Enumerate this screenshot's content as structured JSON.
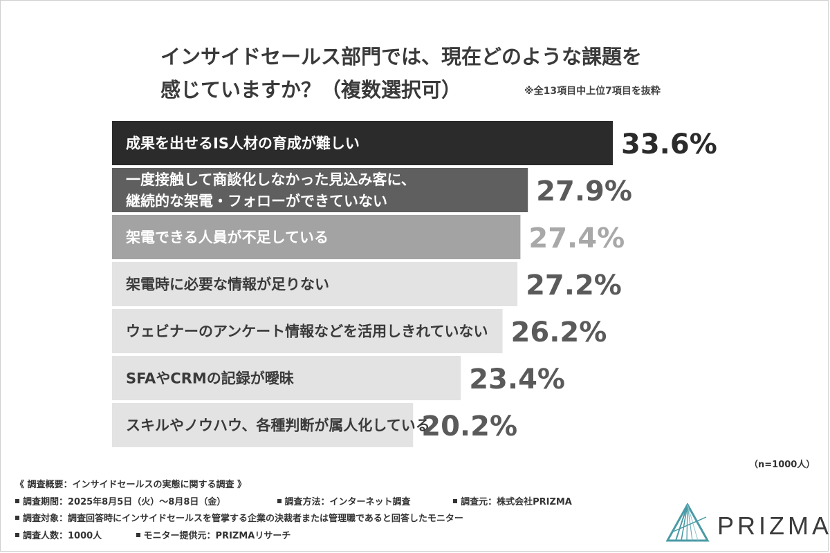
{
  "title_line1": "インサイドセールス部門では、現在どのような課題を",
  "title_line2": "感じていますか？（複数選択可）",
  "note": "※全13項目中上位7項目を抜粋",
  "chart_data": {
    "type": "bar",
    "orientation": "horizontal",
    "categories": [
      [
        "成果を出せるIS人材の育成が難しい"
      ],
      [
        "一度接触して商談化しなかった見込み客に、",
        "継続的な架電・フォローができていない"
      ],
      [
        "架電できる人員が不足している"
      ],
      [
        "架電時に必要な情報が足りない"
      ],
      [
        "ウェビナーのアンケート情報などを活用しきれていない"
      ],
      [
        "SFAやCRMの記録が曖昧"
      ],
      [
        "スキルやノウハウ、各種判断が属人化している"
      ]
    ],
    "values": [
      33.6,
      27.9,
      27.4,
      27.2,
      26.2,
      23.4,
      20.2
    ],
    "value_labels": [
      "33.6%",
      "27.9%",
      "27.4%",
      "27.2%",
      "26.2%",
      "23.4%",
      "20.2%"
    ],
    "bar_colors": [
      "#2b2b2b",
      "#5f5f5f",
      "#a3a3a3",
      "#e3e3e3",
      "#e3e3e3",
      "#e3e3e3",
      "#e3e3e3"
    ],
    "label_colors": [
      "#ffffff",
      "#ffffff",
      "#ffffff",
      "#3a3a3a",
      "#3a3a3a",
      "#3a3a3a",
      "#3a3a3a"
    ],
    "value_colors": [
      "#2b2b2b",
      "#5a5a5a",
      "#a8a8a8",
      "#5a5a5a",
      "#5a5a5a",
      "#5a5a5a",
      "#5a5a5a"
    ],
    "xlim": [
      0,
      33.6
    ]
  },
  "sample_note": "（n=1000人）",
  "overview": {
    "heading": "《 調査概要：インサイドセールスの実態に関する調査 》",
    "period": "調査期間：2025年8月5日（火）～8月8日（金）",
    "method": "調査方法：インターネット調査",
    "organizer": "調査元：株式会社PRIZMA",
    "target": "調査対象：調査回答時にインサイドセールスを管掌する企業の決裁者または管理職であると回答したモニター",
    "count": "調査人数：1000人",
    "provider": "モニター提供元：PRIZMAリサーチ"
  },
  "logo": {
    "text": "PRIZMA",
    "icon": "prism-triangle-icon",
    "color": "#4a9aa5"
  }
}
